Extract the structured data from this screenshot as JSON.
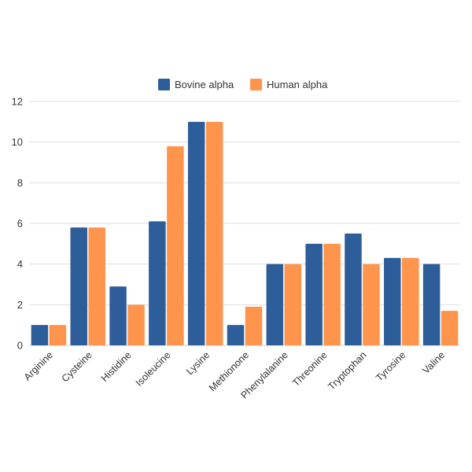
{
  "chart_data": {
    "type": "bar",
    "title": "",
    "xlabel": "",
    "ylabel": "",
    "ylim": [
      0,
      12
    ],
    "yticks": [
      0,
      2,
      4,
      6,
      8,
      10,
      12
    ],
    "categories": [
      "Arginine",
      "Cysteine",
      "Histidine",
      "Isoleucine",
      "Lysine",
      "Methionone",
      "Phenylalanine",
      "Threonine",
      "Tryptophan",
      "Tyrosine",
      "Valine"
    ],
    "series": [
      {
        "name": "Bovine alpha",
        "color": "#2e5e99",
        "values": [
          1,
          5.8,
          2.9,
          6.1,
          11,
          1,
          4,
          5,
          5.5,
          4.3,
          4
        ]
      },
      {
        "name": "Human alpha",
        "color": "#ff944d",
        "values": [
          1,
          5.8,
          2,
          9.8,
          11,
          1.9,
          4,
          5,
          4,
          4.3,
          1.7
        ]
      }
    ],
    "legend_position": "top-center",
    "grid": true
  }
}
